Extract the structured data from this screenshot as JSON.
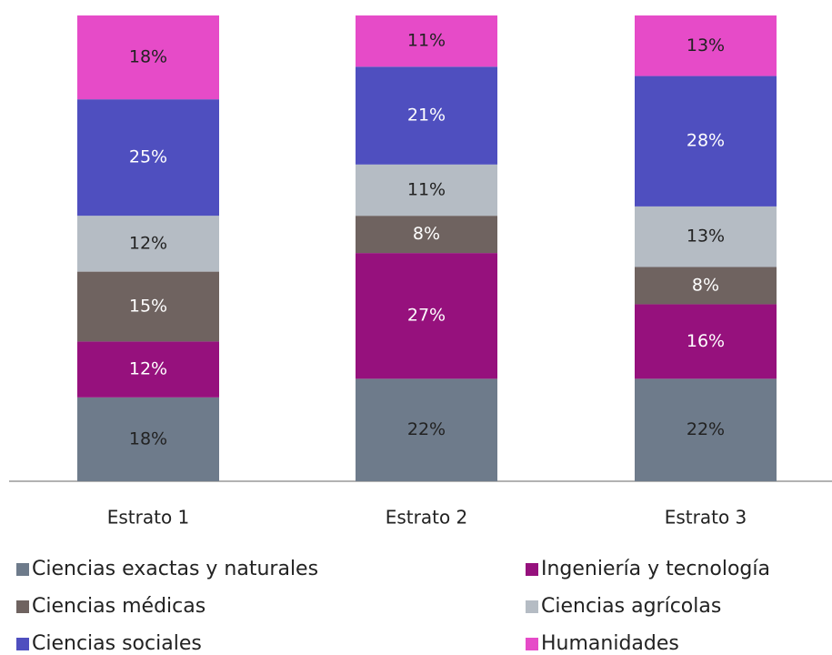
{
  "chart_data": {
    "type": "stacked_bar",
    "categories": [
      "Estrato 1",
      "Estrato 2",
      "Estrato 3"
    ],
    "ylim": [
      0,
      100
    ],
    "legend": "bottom",
    "series": [
      {
        "name": "Ciencias exactas y naturales",
        "color": "#6e7b8b",
        "label_color": "#222222",
        "values": [
          18,
          22,
          22
        ],
        "value_labels": [
          "18%",
          "22%",
          "22%"
        ]
      },
      {
        "name": "Ingeniería y tecnología",
        "color": "#96117d",
        "label_color": "#ffffff",
        "values": [
          12,
          27,
          16
        ],
        "value_labels": [
          "12%",
          "27%",
          "16%"
        ]
      },
      {
        "name": "Ciencias médicas",
        "color": "#6f6360",
        "label_color": "#ffffff",
        "values": [
          15,
          8,
          8
        ],
        "value_labels": [
          "15%",
          "8%",
          "8%"
        ]
      },
      {
        "name": "Ciencias agrícolas",
        "color": "#b5bcc4",
        "label_color": "#222222",
        "values": [
          12,
          11,
          13
        ],
        "value_labels": [
          "12%",
          "11%",
          "13%"
        ]
      },
      {
        "name": "Ciencias sociales",
        "color": "#4f4fbf",
        "label_color": "#ffffff",
        "values": [
          25,
          21,
          28
        ],
        "value_labels": [
          "25%",
          "21%",
          "28%"
        ]
      },
      {
        "name": "Humanidades",
        "color": "#e64bc8",
        "label_color": "#222222",
        "values": [
          18,
          11,
          13
        ],
        "value_labels": [
          "18%",
          "11%",
          "13%"
        ]
      }
    ]
  }
}
